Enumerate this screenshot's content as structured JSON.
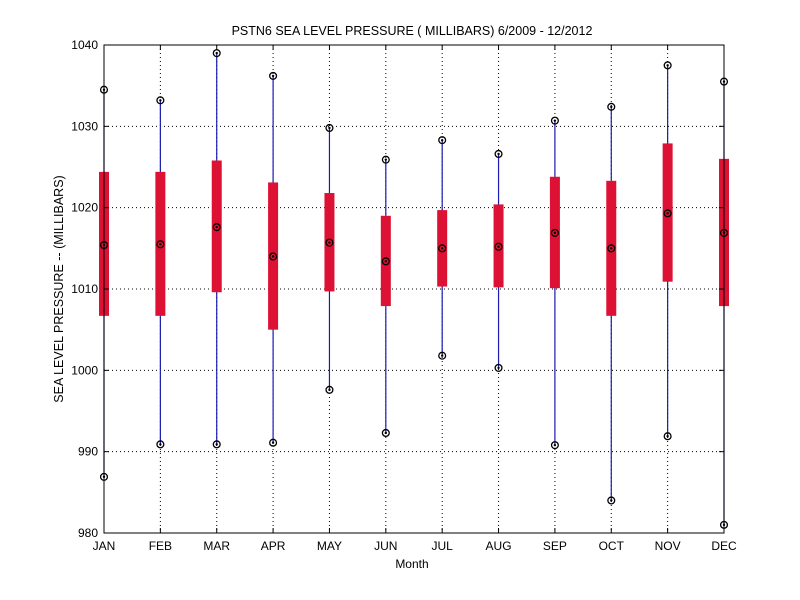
{
  "chart_data": {
    "type": "box",
    "title": "PSTN6  SEA LEVEL PRESSURE ( MILLIBARS) 6/2009 - 12/2012",
    "xlabel": "Month",
    "ylabel": "SEA LEVEL PRESSURE -- (MILLIBARS)",
    "ylim": [
      980,
      1040
    ],
    "yticks": [
      980,
      990,
      1000,
      1010,
      1020,
      1030,
      1040
    ],
    "grid": true,
    "categories": [
      "JAN",
      "FEB",
      "MAR",
      "APR",
      "MAY",
      "JUN",
      "JUL",
      "AUG",
      "SEP",
      "OCT",
      "NOV",
      "DEC"
    ],
    "series": [
      {
        "name": "min",
        "values": [
          986.9,
          990.9,
          990.9,
          991.1,
          997.6,
          992.3,
          1001.8,
          1000.3,
          990.8,
          984.0,
          991.9,
          981.0
        ]
      },
      {
        "name": "q1",
        "values": [
          1006.7,
          1006.7,
          1009.6,
          1005.0,
          1009.7,
          1007.9,
          1010.3,
          1010.2,
          1010.1,
          1006.7,
          1010.9,
          1007.9
        ]
      },
      {
        "name": "median",
        "values": [
          1015.4,
          1015.5,
          1017.6,
          1014.0,
          1015.7,
          1013.4,
          1015.0,
          1015.2,
          1016.9,
          1015.0,
          1019.3,
          1016.9
        ]
      },
      {
        "name": "q3",
        "values": [
          1024.4,
          1024.4,
          1025.8,
          1023.1,
          1021.8,
          1019.0,
          1019.7,
          1020.4,
          1023.8,
          1023.3,
          1027.9,
          1026.0
        ]
      },
      {
        "name": "max",
        "values": [
          1034.5,
          1033.2,
          1039.0,
          1036.2,
          1029.8,
          1025.9,
          1028.3,
          1026.6,
          1030.7,
          1032.4,
          1037.5,
          1035.5
        ]
      }
    ],
    "colors": {
      "whisker": "#1c1cb0",
      "box": "#dd1133",
      "marker": "#000000",
      "grid": "#000000",
      "axis": "#000000"
    }
  }
}
